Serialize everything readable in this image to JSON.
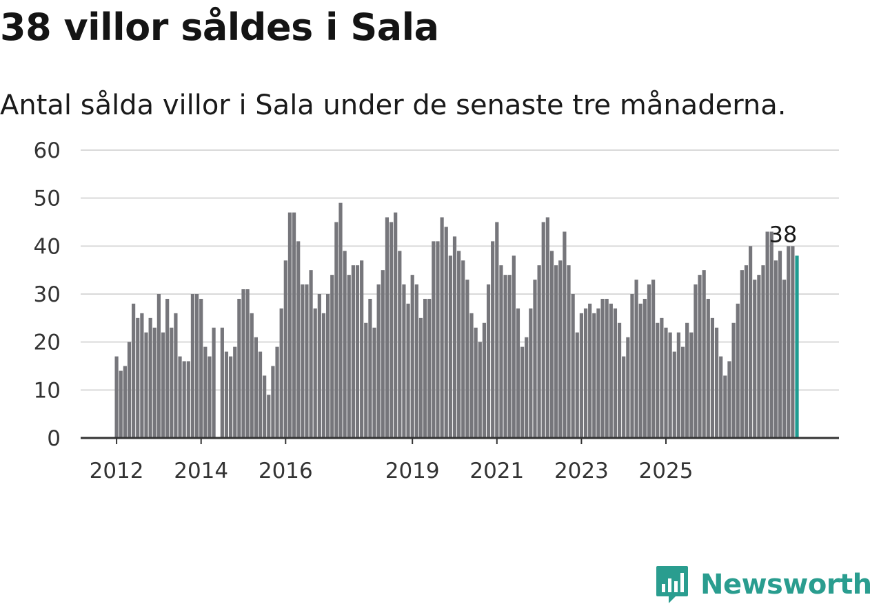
{
  "title": "38 villor såldes i Sala",
  "subtitle": "Antal sålda villor i Sala under de senaste tre månaderna.",
  "brand": {
    "name": "Newsworthy",
    "color": "#2a9d8f",
    "icon": "newsworthy-logo-icon"
  },
  "colors": {
    "bar": "#76767b",
    "highlight": "#1f9c91",
    "grid": "#d9d9d9",
    "axis": "#333333"
  },
  "chart_data": {
    "type": "bar",
    "title": "",
    "xlabel": "",
    "ylabel": "",
    "ylim": [
      0,
      60
    ],
    "yticks": [
      0,
      10,
      20,
      30,
      40,
      50,
      60
    ],
    "grid": true,
    "legend": "none",
    "xtick_labels": [
      {
        "label": "2012",
        "index": 0
      },
      {
        "label": "2014",
        "index": 20
      },
      {
        "label": "2016",
        "index": 40
      },
      {
        "label": "2019",
        "index": 70
      },
      {
        "label": "2021",
        "index": 90
      },
      {
        "label": "2023",
        "index": 110
      },
      {
        "label": "2025",
        "index": 130
      }
    ],
    "values": [
      17,
      14,
      15,
      20,
      28,
      25,
      26,
      22,
      25,
      23,
      30,
      22,
      29,
      23,
      26,
      17,
      16,
      16,
      30,
      30,
      29,
      19,
      17,
      23,
      0,
      23,
      18,
      17,
      19,
      29,
      31,
      31,
      26,
      21,
      18,
      13,
      9,
      15,
      19,
      27,
      37,
      47,
      47,
      41,
      32,
      32,
      35,
      27,
      30,
      26,
      30,
      34,
      45,
      49,
      39,
      34,
      36,
      36,
      37,
      24,
      29,
      23,
      32,
      35,
      46,
      45,
      47,
      39,
      32,
      28,
      34,
      32,
      25,
      29,
      29,
      41,
      41,
      46,
      44,
      38,
      42,
      39,
      37,
      33,
      26,
      23,
      20,
      24,
      32,
      41,
      45,
      36,
      34,
      34,
      38,
      27,
      19,
      21,
      27,
      33,
      36,
      45,
      46,
      39,
      36,
      37,
      43,
      36,
      30,
      22,
      26,
      27,
      28,
      26,
      27,
      29,
      29,
      28,
      27,
      24,
      17,
      21,
      30,
      33,
      28,
      29,
      32,
      33,
      24,
      25,
      23,
      22,
      18,
      22,
      19,
      24,
      22,
      32,
      34,
      35,
      29,
      25,
      23,
      17,
      13,
      16,
      24,
      28,
      35,
      36,
      40,
      33,
      34,
      36,
      43,
      43,
      37,
      39,
      33,
      40,
      40,
      38
    ],
    "highlight_index": 161,
    "highlight_label": "38"
  }
}
